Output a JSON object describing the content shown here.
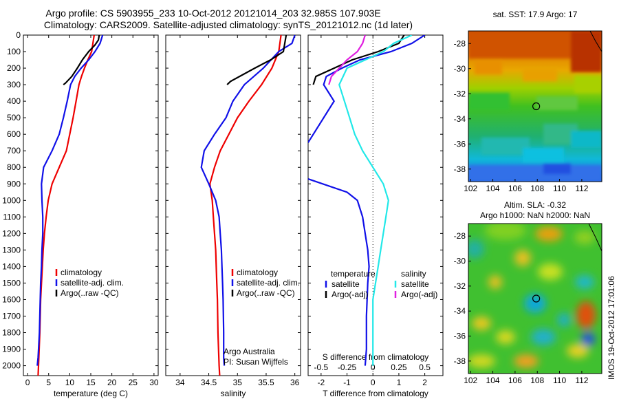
{
  "title": {
    "line1": "Argo profile: CS 5903955_233 10-Oct-2012 20121014_203 32.985S 107.903E",
    "line2": "Climatology: CARS2009. Satellite-adjusted climatology: synTS_20121012.nc (1d later)"
  },
  "side_stamp": "IMOS 19-Oct-2012 17:01:06",
  "colors": {
    "climatology": "#ee0000",
    "satellite": "#1010e8",
    "argo": "#000000",
    "salinity_satellite": "#22e8e8",
    "salinity_argo": "#e020e0"
  },
  "chart_data": [
    {
      "type": "line",
      "panel": "temperature",
      "xlabel": "temperature (deg C)",
      "xlim": [
        -1,
        31
      ],
      "xticks": [
        0,
        5,
        10,
        15,
        20,
        25,
        30
      ],
      "ylim": [
        0,
        2060
      ],
      "yticks": [
        0,
        100,
        200,
        300,
        400,
        500,
        600,
        700,
        800,
        900,
        1000,
        1100,
        1200,
        1300,
        1400,
        1500,
        1600,
        1700,
        1800,
        1900,
        2000
      ],
      "y_reversed": true,
      "legend": [
        "climatology",
        "satellite-adj. clim.",
        "Argo(..raw -QC)"
      ],
      "series": [
        {
          "name": "climatology",
          "color": "#ee0000",
          "points": [
            [
              15.8,
              0
            ],
            [
              15.5,
              50
            ],
            [
              15.2,
              100
            ],
            [
              14.3,
              150
            ],
            [
              13.5,
              200
            ],
            [
              12.8,
              250
            ],
            [
              12.2,
              300
            ],
            [
              11.5,
              400
            ],
            [
              10.8,
              500
            ],
            [
              10.0,
              600
            ],
            [
              9.2,
              700
            ],
            [
              7.5,
              800
            ],
            [
              5.8,
              900
            ],
            [
              4.9,
              1000
            ],
            [
              4.4,
              1100
            ],
            [
              4.0,
              1200
            ],
            [
              3.7,
              1300
            ],
            [
              3.5,
              1400
            ],
            [
              3.3,
              1500
            ],
            [
              3.1,
              1600
            ],
            [
              2.9,
              1800
            ],
            [
              2.6,
              2000
            ],
            [
              2.5,
              2060
            ]
          ]
        },
        {
          "name": "satellite-adj. clim.",
          "color": "#1010e8",
          "points": [
            [
              17.8,
              0
            ],
            [
              17.2,
              50
            ],
            [
              16.0,
              100
            ],
            [
              14.5,
              150
            ],
            [
              12.7,
              200
            ],
            [
              11.2,
              250
            ],
            [
              10.2,
              300
            ],
            [
              9.4,
              400
            ],
            [
              8.5,
              500
            ],
            [
              7.5,
              600
            ],
            [
              5.8,
              700
            ],
            [
              3.8,
              800
            ],
            [
              3.3,
              900
            ],
            [
              3.4,
              1000
            ],
            [
              3.6,
              1100
            ],
            [
              3.6,
              1200
            ],
            [
              3.4,
              1300
            ],
            [
              3.3,
              1400
            ],
            [
              3.1,
              1500
            ],
            [
              3.0,
              1600
            ],
            [
              2.8,
              1800
            ],
            [
              2.5,
              1950
            ],
            [
              2.3,
              2000
            ]
          ]
        },
        {
          "name": "Argo(..raw -QC)",
          "color": "#000000",
          "points": [
            [
              17.0,
              0
            ],
            [
              16.8,
              30
            ],
            [
              16.0,
              60
            ],
            [
              14.5,
              100
            ],
            [
              13.0,
              150
            ],
            [
              11.8,
              200
            ],
            [
              10.5,
              250
            ],
            [
              9.0,
              290
            ],
            [
              8.5,
              300
            ]
          ]
        }
      ],
      "annotations": []
    },
    {
      "type": "line",
      "panel": "salinity",
      "xlabel": "salinity",
      "xlim": [
        33.75,
        36.1
      ],
      "xticks": [
        34,
        34.5,
        35,
        35.5,
        36
      ],
      "ylim": [
        0,
        2060
      ],
      "y_reversed": true,
      "legend": [
        "climatology",
        "satellite-adj. clim.",
        "Argo(..raw -QC)"
      ],
      "series": [
        {
          "name": "climatology",
          "color": "#ee0000",
          "points": [
            [
              35.76,
              0
            ],
            [
              35.72,
              100
            ],
            [
              35.6,
              200
            ],
            [
              35.42,
              300
            ],
            [
              35.2,
              400
            ],
            [
              35.0,
              500
            ],
            [
              34.85,
              600
            ],
            [
              34.7,
              700
            ],
            [
              34.6,
              800
            ],
            [
              34.52,
              900
            ],
            [
              34.56,
              1000
            ],
            [
              34.58,
              1100
            ],
            [
              34.6,
              1200
            ],
            [
              34.62,
              1300
            ],
            [
              34.63,
              1400
            ],
            [
              34.64,
              1500
            ],
            [
              34.65,
              1600
            ],
            [
              34.66,
              1800
            ],
            [
              34.68,
              2000
            ],
            [
              34.69,
              2060
            ]
          ]
        },
        {
          "name": "satellite-adj. clim.",
          "color": "#1010e8",
          "points": [
            [
              36.0,
              0
            ],
            [
              35.95,
              50
            ],
            [
              35.72,
              100
            ],
            [
              35.45,
              200
            ],
            [
              35.12,
              300
            ],
            [
              34.92,
              400
            ],
            [
              34.8,
              500
            ],
            [
              34.6,
              600
            ],
            [
              34.42,
              700
            ],
            [
              34.37,
              800
            ],
            [
              34.5,
              900
            ],
            [
              34.62,
              1000
            ],
            [
              34.68,
              1100
            ],
            [
              34.7,
              1200
            ],
            [
              34.72,
              1300
            ],
            [
              34.73,
              1400
            ],
            [
              34.74,
              1500
            ],
            [
              34.75,
              1600
            ],
            [
              34.76,
              1800
            ],
            [
              34.76,
              1950
            ],
            [
              34.77,
              2000
            ]
          ]
        },
        {
          "name": "Argo(..raw -QC)",
          "color": "#000000",
          "points": [
            [
              35.85,
              0
            ],
            [
              35.8,
              100
            ],
            [
              35.58,
              150
            ],
            [
              35.3,
              200
            ],
            [
              34.88,
              280
            ],
            [
              34.82,
              300
            ]
          ]
        }
      ],
      "annotations": [
        "Argo Australia",
        "PI: Susan Wijffels"
      ]
    },
    {
      "type": "line",
      "panel": "difference",
      "xlabel": "T difference from climatology",
      "xlabel_top": "S difference from climatology",
      "xlim": [
        -2.5,
        2.7
      ],
      "xticks": [
        -2,
        -1,
        0,
        1,
        2
      ],
      "xticks_top": [
        {
          "label": "-0.5",
          "t": -2.0
        },
        {
          "label": "-0.25",
          "t": -1.0
        },
        {
          "label": "0",
          "t": 0.0
        },
        {
          "label": "0.25",
          "t": 1.0
        },
        {
          "label": "0.5",
          "t": 2.0
        }
      ],
      "ylim": [
        0,
        2060
      ],
      "y_reversed": true,
      "legend_titles": [
        "temperature",
        "salinity"
      ],
      "legend": [
        "satellite",
        "Argo(-adj)",
        "satellite",
        "Argo(-adj)"
      ],
      "series": [
        {
          "name": "temperature satellite",
          "color": "#1010e8",
          "points": [
            [
              2.0,
              0
            ],
            [
              1.5,
              50
            ],
            [
              0.7,
              100
            ],
            [
              -0.5,
              150
            ],
            [
              -1.2,
              200
            ],
            [
              -1.8,
              250
            ],
            [
              -1.9,
              300
            ],
            [
              -1.7,
              350
            ],
            [
              -1.5,
              400
            ],
            [
              -2.5,
              650
            ]
          ]
        },
        {
          "name": "temperature satellite deep",
          "color": "#1010e8",
          "points": [
            [
              -2.5,
              870
            ],
            [
              -1.0,
              950
            ],
            [
              -0.6,
              1000
            ],
            [
              -0.4,
              1100
            ],
            [
              -0.3,
              1200
            ],
            [
              -0.2,
              1300
            ],
            [
              -0.15,
              1400
            ],
            [
              -0.2,
              1500
            ],
            [
              -0.25,
              1700
            ],
            [
              -0.25,
              1900
            ],
            [
              -0.3,
              2000
            ]
          ]
        },
        {
          "name": "temperature Argo(-adj)",
          "color": "#000000",
          "points": [
            [
              1.2,
              0
            ],
            [
              1.0,
              50
            ],
            [
              0.2,
              100
            ],
            [
              -0.8,
              150
            ],
            [
              -1.5,
              200
            ],
            [
              -2.2,
              250
            ],
            [
              -2.3,
              300
            ]
          ]
        },
        {
          "name": "salinity satellite",
          "color": "#22e8e8",
          "points": [
            [
              1.5,
              0
            ],
            [
              0.8,
              50
            ],
            [
              0.4,
              100
            ],
            [
              -1.0,
              200
            ],
            [
              -1.3,
              300
            ],
            [
              -1.1,
              400
            ],
            [
              -0.9,
              500
            ],
            [
              -0.7,
              600
            ],
            [
              -0.4,
              700
            ],
            [
              0.0,
              800
            ],
            [
              0.4,
              900
            ],
            [
              0.6,
              1000
            ],
            [
              0.5,
              1100
            ],
            [
              0.4,
              1200
            ],
            [
              0.3,
              1300
            ],
            [
              0.2,
              1400
            ],
            [
              0.1,
              1500
            ],
            [
              0.0,
              1600
            ],
            [
              0.0,
              1800
            ],
            [
              0.0,
              2000
            ]
          ]
        },
        {
          "name": "salinity Argo(-adj)",
          "color": "#e020e0",
          "points": [
            [
              -0.3,
              0
            ],
            [
              -0.4,
              50
            ],
            [
              -0.6,
              100
            ],
            [
              -1.0,
              150
            ],
            [
              -1.3,
              200
            ],
            [
              -1.6,
              250
            ],
            [
              -1.7,
              300
            ]
          ]
        }
      ]
    },
    {
      "type": "heatmap",
      "panel": "sst_map",
      "title": "sat. SST: 17.9 Argo: 17",
      "xlim": [
        101.8,
        113.8
      ],
      "ylim": [
        -39,
        -27
      ],
      "xticks": [
        102,
        104,
        106,
        108,
        110,
        112
      ],
      "yticks": [
        -28,
        -30,
        -32,
        -34,
        -36,
        -38
      ],
      "marker": [
        107.9,
        -33.0
      ]
    },
    {
      "type": "heatmap",
      "panel": "sla_map",
      "title": "Altim. SLA: -0.32",
      "subtitle": "Argo h1000: NaN h2000: NaN",
      "xlim": [
        101.8,
        113.8
      ],
      "ylim": [
        -39,
        -27
      ],
      "xticks": [
        102,
        104,
        106,
        108,
        110,
        112
      ],
      "yticks": [
        -28,
        -30,
        -32,
        -34,
        -36,
        -38
      ],
      "marker": [
        107.9,
        -33.0
      ]
    }
  ]
}
